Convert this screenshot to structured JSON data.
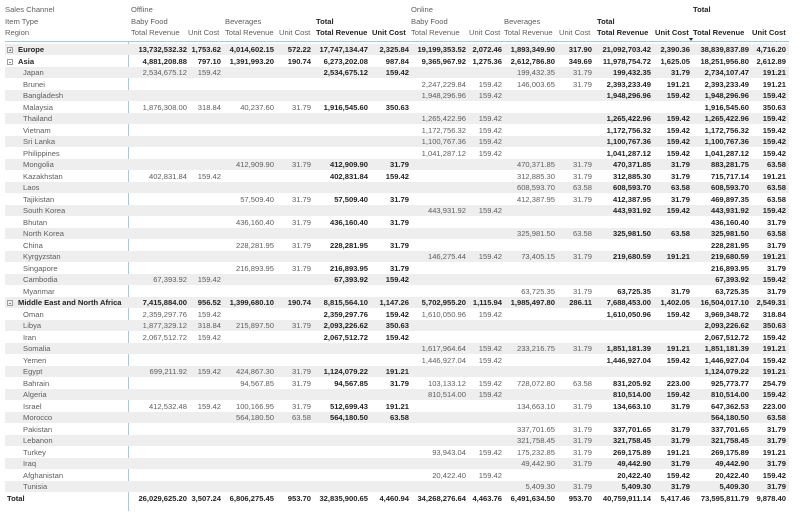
{
  "header": {
    "row_labels": [
      "Sales Channel",
      "Item Type",
      "Region"
    ],
    "channels": [
      {
        "label": "Offline"
      },
      {
        "label": "Online"
      },
      {
        "label": "Total"
      }
    ],
    "item_types": [
      "Baby Food",
      "Beverages",
      "Total",
      "Baby Food",
      "Beverages",
      "Total"
    ],
    "measures": [
      "Total Revenue",
      "Unit Cost",
      "Total Revenue",
      "Unit Cost",
      "Total Revenue",
      "Unit Cost",
      "Total Revenue",
      "Unit Cost",
      "Total Revenue",
      "Unit Cost",
      "Total Revenue",
      "Unit Cost",
      "Total Revenue",
      "Unit Cost",
      "Total Revenue",
      "Unit Cost"
    ],
    "sort_indicator": "sort-descending-icon on Total > Total Revenue"
  },
  "columns": [
    "Offline Baby Food Total Revenue",
    "Offline Baby Food Unit Cost",
    "Offline Beverages Total Revenue",
    "Offline Beverages Unit Cost",
    "Offline Total Total Revenue",
    "Offline Total Unit Cost",
    "Online Baby Food Total Revenue",
    "Online Baby Food Unit Cost",
    "Online Beverages Total Revenue",
    "Online Beverages Unit Cost",
    "Online Total Total Revenue",
    "Online Total Unit Cost",
    "Total Total Revenue",
    "Total Unit Cost"
  ],
  "rows": [
    {
      "label": "Europe",
      "type": "region",
      "expand": "plus",
      "v": [
        "13,732,532.32",
        "1,753.62",
        "4,014,602.15",
        "572.22",
        "17,747,134.47",
        "2,325.84",
        "19,199,353.52",
        "2,072.46",
        "1,893,349.90",
        "317.90",
        "21,092,703.42",
        "2,390.36",
        "38,839,837.89",
        "4,716.20"
      ]
    },
    {
      "label": "Asia",
      "type": "region",
      "expand": "minus",
      "v": [
        "4,881,208.88",
        "797.10",
        "1,391,993.20",
        "190.74",
        "6,273,202.08",
        "987.84",
        "9,365,967.92",
        "1,275.36",
        "2,612,786.80",
        "349.69",
        "11,978,754.72",
        "1,625.05",
        "18,251,956.80",
        "2,612.89"
      ]
    },
    {
      "label": "Japan",
      "type": "child",
      "v": [
        "2,534,675.12",
        "159.42",
        "",
        "",
        "2,534,675.12",
        "159.42",
        "",
        "",
        "199,432.35",
        "31.79",
        "199,432.35",
        "31.79",
        "2,734,107.47",
        "191.21"
      ]
    },
    {
      "label": "Brunei",
      "type": "child",
      "v": [
        "",
        "",
        "",
        "",
        "",
        "",
        "2,247,229.84",
        "159.42",
        "146,003.65",
        "31.79",
        "2,393,233.49",
        "191.21",
        "2,393,233.49",
        "191.21"
      ]
    },
    {
      "label": "Bangladesh",
      "type": "child",
      "v": [
        "",
        "",
        "",
        "",
        "",
        "",
        "1,948,296.96",
        "159.42",
        "",
        "",
        "1,948,296.96",
        "159.42",
        "1,948,296.96",
        "159.42"
      ]
    },
    {
      "label": "Malaysia",
      "type": "child",
      "v": [
        "1,876,308.00",
        "318.84",
        "40,237.60",
        "31.79",
        "1,916,545.60",
        "350.63",
        "",
        "",
        "",
        "",
        "",
        "",
        "1,916,545.60",
        "350.63"
      ]
    },
    {
      "label": "Thailand",
      "type": "child",
      "v": [
        "",
        "",
        "",
        "",
        "",
        "",
        "1,265,422.96",
        "159.42",
        "",
        "",
        "1,265,422.96",
        "159.42",
        "1,265,422.96",
        "159.42"
      ]
    },
    {
      "label": "Vietnam",
      "type": "child",
      "v": [
        "",
        "",
        "",
        "",
        "",
        "",
        "1,172,756.32",
        "159.42",
        "",
        "",
        "1,172,756.32",
        "159.42",
        "1,172,756.32",
        "159.42"
      ]
    },
    {
      "label": "Sri Lanka",
      "type": "child",
      "v": [
        "",
        "",
        "",
        "",
        "",
        "",
        "1,100,767.36",
        "159.42",
        "",
        "",
        "1,100,767.36",
        "159.42",
        "1,100,767.36",
        "159.42"
      ]
    },
    {
      "label": "Philippines",
      "type": "child",
      "v": [
        "",
        "",
        "",
        "",
        "",
        "",
        "1,041,287.12",
        "159.42",
        "",
        "",
        "1,041,287.12",
        "159.42",
        "1,041,287.12",
        "159.42"
      ]
    },
    {
      "label": "Mongolia",
      "type": "child",
      "v": [
        "",
        "",
        "412,909.90",
        "31.79",
        "412,909.90",
        "31.79",
        "",
        "",
        "470,371.85",
        "31.79",
        "470,371.85",
        "31.79",
        "883,281.75",
        "63.58"
      ]
    },
    {
      "label": "Kazakhstan",
      "type": "child",
      "v": [
        "402,831.84",
        "159.42",
        "",
        "",
        "402,831.84",
        "159.42",
        "",
        "",
        "312,885.30",
        "31.79",
        "312,885.30",
        "31.79",
        "715,717.14",
        "191.21"
      ]
    },
    {
      "label": "Laos",
      "type": "child",
      "v": [
        "",
        "",
        "",
        "",
        "",
        "",
        "",
        "",
        "608,593.70",
        "63.58",
        "608,593.70",
        "63.58",
        "608,593.70",
        "63.58"
      ]
    },
    {
      "label": "Tajikistan",
      "type": "child",
      "v": [
        "",
        "",
        "57,509.40",
        "31.79",
        "57,509.40",
        "31.79",
        "",
        "",
        "412,387.95",
        "31.79",
        "412,387.95",
        "31.79",
        "469,897.35",
        "63.58"
      ]
    },
    {
      "label": "South Korea",
      "type": "child",
      "v": [
        "",
        "",
        "",
        "",
        "",
        "",
        "443,931.92",
        "159.42",
        "",
        "",
        "443,931.92",
        "159.42",
        "443,931.92",
        "159.42"
      ]
    },
    {
      "label": "Bhutan",
      "type": "child",
      "v": [
        "",
        "",
        "436,160.40",
        "31.79",
        "436,160.40",
        "31.79",
        "",
        "",
        "",
        "",
        "",
        "",
        "436,160.40",
        "31.79"
      ]
    },
    {
      "label": "North Korea",
      "type": "child",
      "v": [
        "",
        "",
        "",
        "",
        "",
        "",
        "",
        "",
        "325,981.50",
        "63.58",
        "325,981.50",
        "63.58",
        "325,981.50",
        "63.58"
      ]
    },
    {
      "label": "China",
      "type": "child",
      "v": [
        "",
        "",
        "228,281.95",
        "31.79",
        "228,281.95",
        "31.79",
        "",
        "",
        "",
        "",
        "",
        "",
        "228,281.95",
        "31.79"
      ]
    },
    {
      "label": "Kyrgyzstan",
      "type": "child",
      "v": [
        "",
        "",
        "",
        "",
        "",
        "",
        "146,275.44",
        "159.42",
        "73,405.15",
        "31.79",
        "219,680.59",
        "191.21",
        "219,680.59",
        "191.21"
      ]
    },
    {
      "label": "Singapore",
      "type": "child",
      "v": [
        "",
        "",
        "216,893.95",
        "31.79",
        "216,893.95",
        "31.79",
        "",
        "",
        "",
        "",
        "",
        "",
        "216,893.95",
        "31.79"
      ]
    },
    {
      "label": "Cambodia",
      "type": "child",
      "v": [
        "67,393.92",
        "159.42",
        "",
        "",
        "67,393.92",
        "159.42",
        "",
        "",
        "",
        "",
        "",
        "",
        "67,393.92",
        "159.42"
      ]
    },
    {
      "label": "Myanmar",
      "type": "child",
      "v": [
        "",
        "",
        "",
        "",
        "",
        "",
        "",
        "",
        "63,725.35",
        "31.79",
        "63,725.35",
        "31.79",
        "63,725.35",
        "31.79"
      ]
    },
    {
      "label": "Middle East and North Africa",
      "type": "region",
      "expand": "minus",
      "v": [
        "7,415,884.00",
        "956.52",
        "1,399,680.10",
        "190.74",
        "8,815,564.10",
        "1,147.26",
        "5,702,955.20",
        "1,115.94",
        "1,985,497.80",
        "286.11",
        "7,688,453.00",
        "1,402.05",
        "16,504,017.10",
        "2,549.31"
      ]
    },
    {
      "label": "Oman",
      "type": "child",
      "v": [
        "2,359,297.76",
        "159.42",
        "",
        "",
        "2,359,297.76",
        "159.42",
        "1,610,050.96",
        "159.42",
        "",
        "",
        "1,610,050.96",
        "159.42",
        "3,969,348.72",
        "318.84"
      ]
    },
    {
      "label": "Libya",
      "type": "child",
      "v": [
        "1,877,329.12",
        "318.84",
        "215,897.50",
        "31.79",
        "2,093,226.62",
        "350.63",
        "",
        "",
        "",
        "",
        "",
        "",
        "2,093,226.62",
        "350.63"
      ]
    },
    {
      "label": "Iran",
      "type": "child",
      "v": [
        "2,067,512.72",
        "159.42",
        "",
        "",
        "2,067,512.72",
        "159.42",
        "",
        "",
        "",
        "",
        "",
        "",
        "2,067,512.72",
        "159.42"
      ]
    },
    {
      "label": "Somalia",
      "type": "child",
      "v": [
        "",
        "",
        "",
        "",
        "",
        "",
        "1,617,964.64",
        "159.42",
        "233,216.75",
        "31.79",
        "1,851,181.39",
        "191.21",
        "1,851,181.39",
        "191.21"
      ]
    },
    {
      "label": "Yemen",
      "type": "child",
      "v": [
        "",
        "",
        "",
        "",
        "",
        "",
        "1,446,927.04",
        "159.42",
        "",
        "",
        "1,446,927.04",
        "159.42",
        "1,446,927.04",
        "159.42"
      ]
    },
    {
      "label": "Egypt",
      "type": "child",
      "v": [
        "699,211.92",
        "159.42",
        "424,867.30",
        "31.79",
        "1,124,079.22",
        "191.21",
        "",
        "",
        "",
        "",
        "",
        "",
        "1,124,079.22",
        "191.21"
      ]
    },
    {
      "label": "Bahrain",
      "type": "child",
      "v": [
        "",
        "",
        "94,567.85",
        "31.79",
        "94,567.85",
        "31.79",
        "103,133.12",
        "159.42",
        "728,072.80",
        "63.58",
        "831,205.92",
        "223.00",
        "925,773.77",
        "254.79"
      ]
    },
    {
      "label": "Algeria",
      "type": "child",
      "v": [
        "",
        "",
        "",
        "",
        "",
        "",
        "810,514.00",
        "159.42",
        "",
        "",
        "810,514.00",
        "159.42",
        "810,514.00",
        "159.42"
      ]
    },
    {
      "label": "Israel",
      "type": "child",
      "v": [
        "412,532.48",
        "159.42",
        "100,166.95",
        "31.79",
        "512,699.43",
        "191.21",
        "",
        "",
        "134,663.10",
        "31.79",
        "134,663.10",
        "31.79",
        "647,362.53",
        "223.00"
      ]
    },
    {
      "label": "Morocco",
      "type": "child",
      "v": [
        "",
        "",
        "564,180.50",
        "63.58",
        "564,180.50",
        "63.58",
        "",
        "",
        "",
        "",
        "",
        "",
        "564,180.50",
        "63.58"
      ]
    },
    {
      "label": "Pakistan",
      "type": "child",
      "v": [
        "",
        "",
        "",
        "",
        "",
        "",
        "",
        "",
        "337,701.65",
        "31.79",
        "337,701.65",
        "31.79",
        "337,701.65",
        "31.79"
      ]
    },
    {
      "label": "Lebanon",
      "type": "child",
      "v": [
        "",
        "",
        "",
        "",
        "",
        "",
        "",
        "",
        "321,758.45",
        "31.79",
        "321,758.45",
        "31.79",
        "321,758.45",
        "31.79"
      ]
    },
    {
      "label": "Turkey",
      "type": "child",
      "v": [
        "",
        "",
        "",
        "",
        "",
        "",
        "93,943.04",
        "159.42",
        "175,232.85",
        "31.79",
        "269,175.89",
        "191.21",
        "269,175.89",
        "191.21"
      ]
    },
    {
      "label": "Iraq",
      "type": "child",
      "v": [
        "",
        "",
        "",
        "",
        "",
        "",
        "",
        "",
        "49,442.90",
        "31.79",
        "49,442.90",
        "31.79",
        "49,442.90",
        "31.79"
      ]
    },
    {
      "label": "Afghanistan",
      "type": "child",
      "v": [
        "",
        "",
        "",
        "",
        "",
        "",
        "20,422.40",
        "159.42",
        "",
        "",
        "20,422.40",
        "159.42",
        "20,422.40",
        "159.42"
      ]
    },
    {
      "label": "Tunisia",
      "type": "child",
      "v": [
        "",
        "",
        "",
        "",
        "",
        "",
        "",
        "",
        "5,409.30",
        "31.79",
        "5,409.30",
        "31.79",
        "5,409.30",
        "31.79"
      ]
    },
    {
      "label": "Total",
      "type": "total",
      "v": [
        "26,029,625.20",
        "3,507.24",
        "6,806,275.45",
        "953.70",
        "32,835,900.65",
        "4,460.94",
        "34,268,276.64",
        "4,463.76",
        "6,491,634.50",
        "953.70",
        "40,759,911.14",
        "5,417.46",
        "73,595,811.79",
        "9,878.40"
      ]
    }
  ],
  "colors": {
    "header_separator": "#9ccbf0",
    "row_band": "#eeeeee",
    "text_primary": "#252423",
    "text_secondary": "#605e5c"
  }
}
